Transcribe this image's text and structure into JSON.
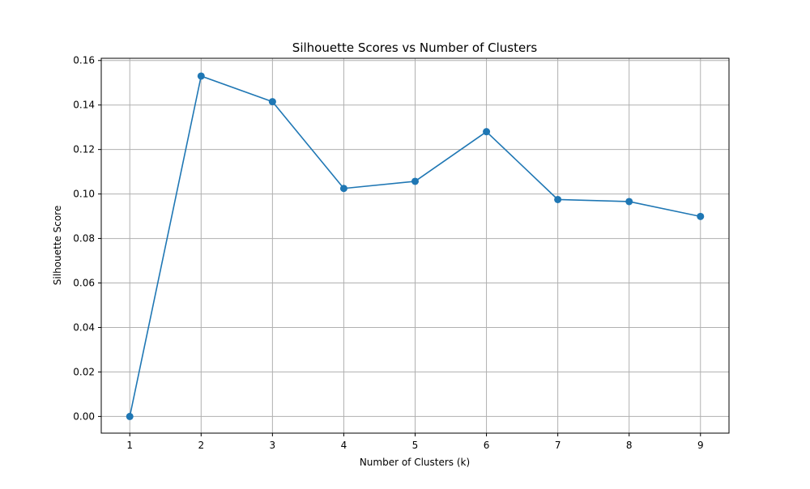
{
  "chart_data": {
    "type": "line",
    "title": "Silhouette Scores vs Number of Clusters",
    "xlabel": "Number of Clusters (k)",
    "ylabel": "Silhouette Score",
    "x": [
      1,
      2,
      3,
      4,
      5,
      6,
      7,
      8,
      9
    ],
    "series": [
      {
        "values": [
          0.0,
          0.153,
          0.1415,
          0.1025,
          0.1057,
          0.128,
          0.0975,
          0.0966,
          0.0899
        ],
        "color": "#1f77b4",
        "marker": "circle"
      }
    ],
    "xlim": [
      0.6,
      9.4
    ],
    "ylim": [
      -0.0075,
      0.161
    ],
    "xticks": [
      "1",
      "2",
      "3",
      "4",
      "5",
      "6",
      "7",
      "8",
      "9"
    ],
    "yticks": [
      "0.00",
      "0.02",
      "0.04",
      "0.06",
      "0.08",
      "0.10",
      "0.12",
      "0.14",
      "0.16"
    ],
    "grid": true,
    "grid_color": "#b0b0b0"
  }
}
